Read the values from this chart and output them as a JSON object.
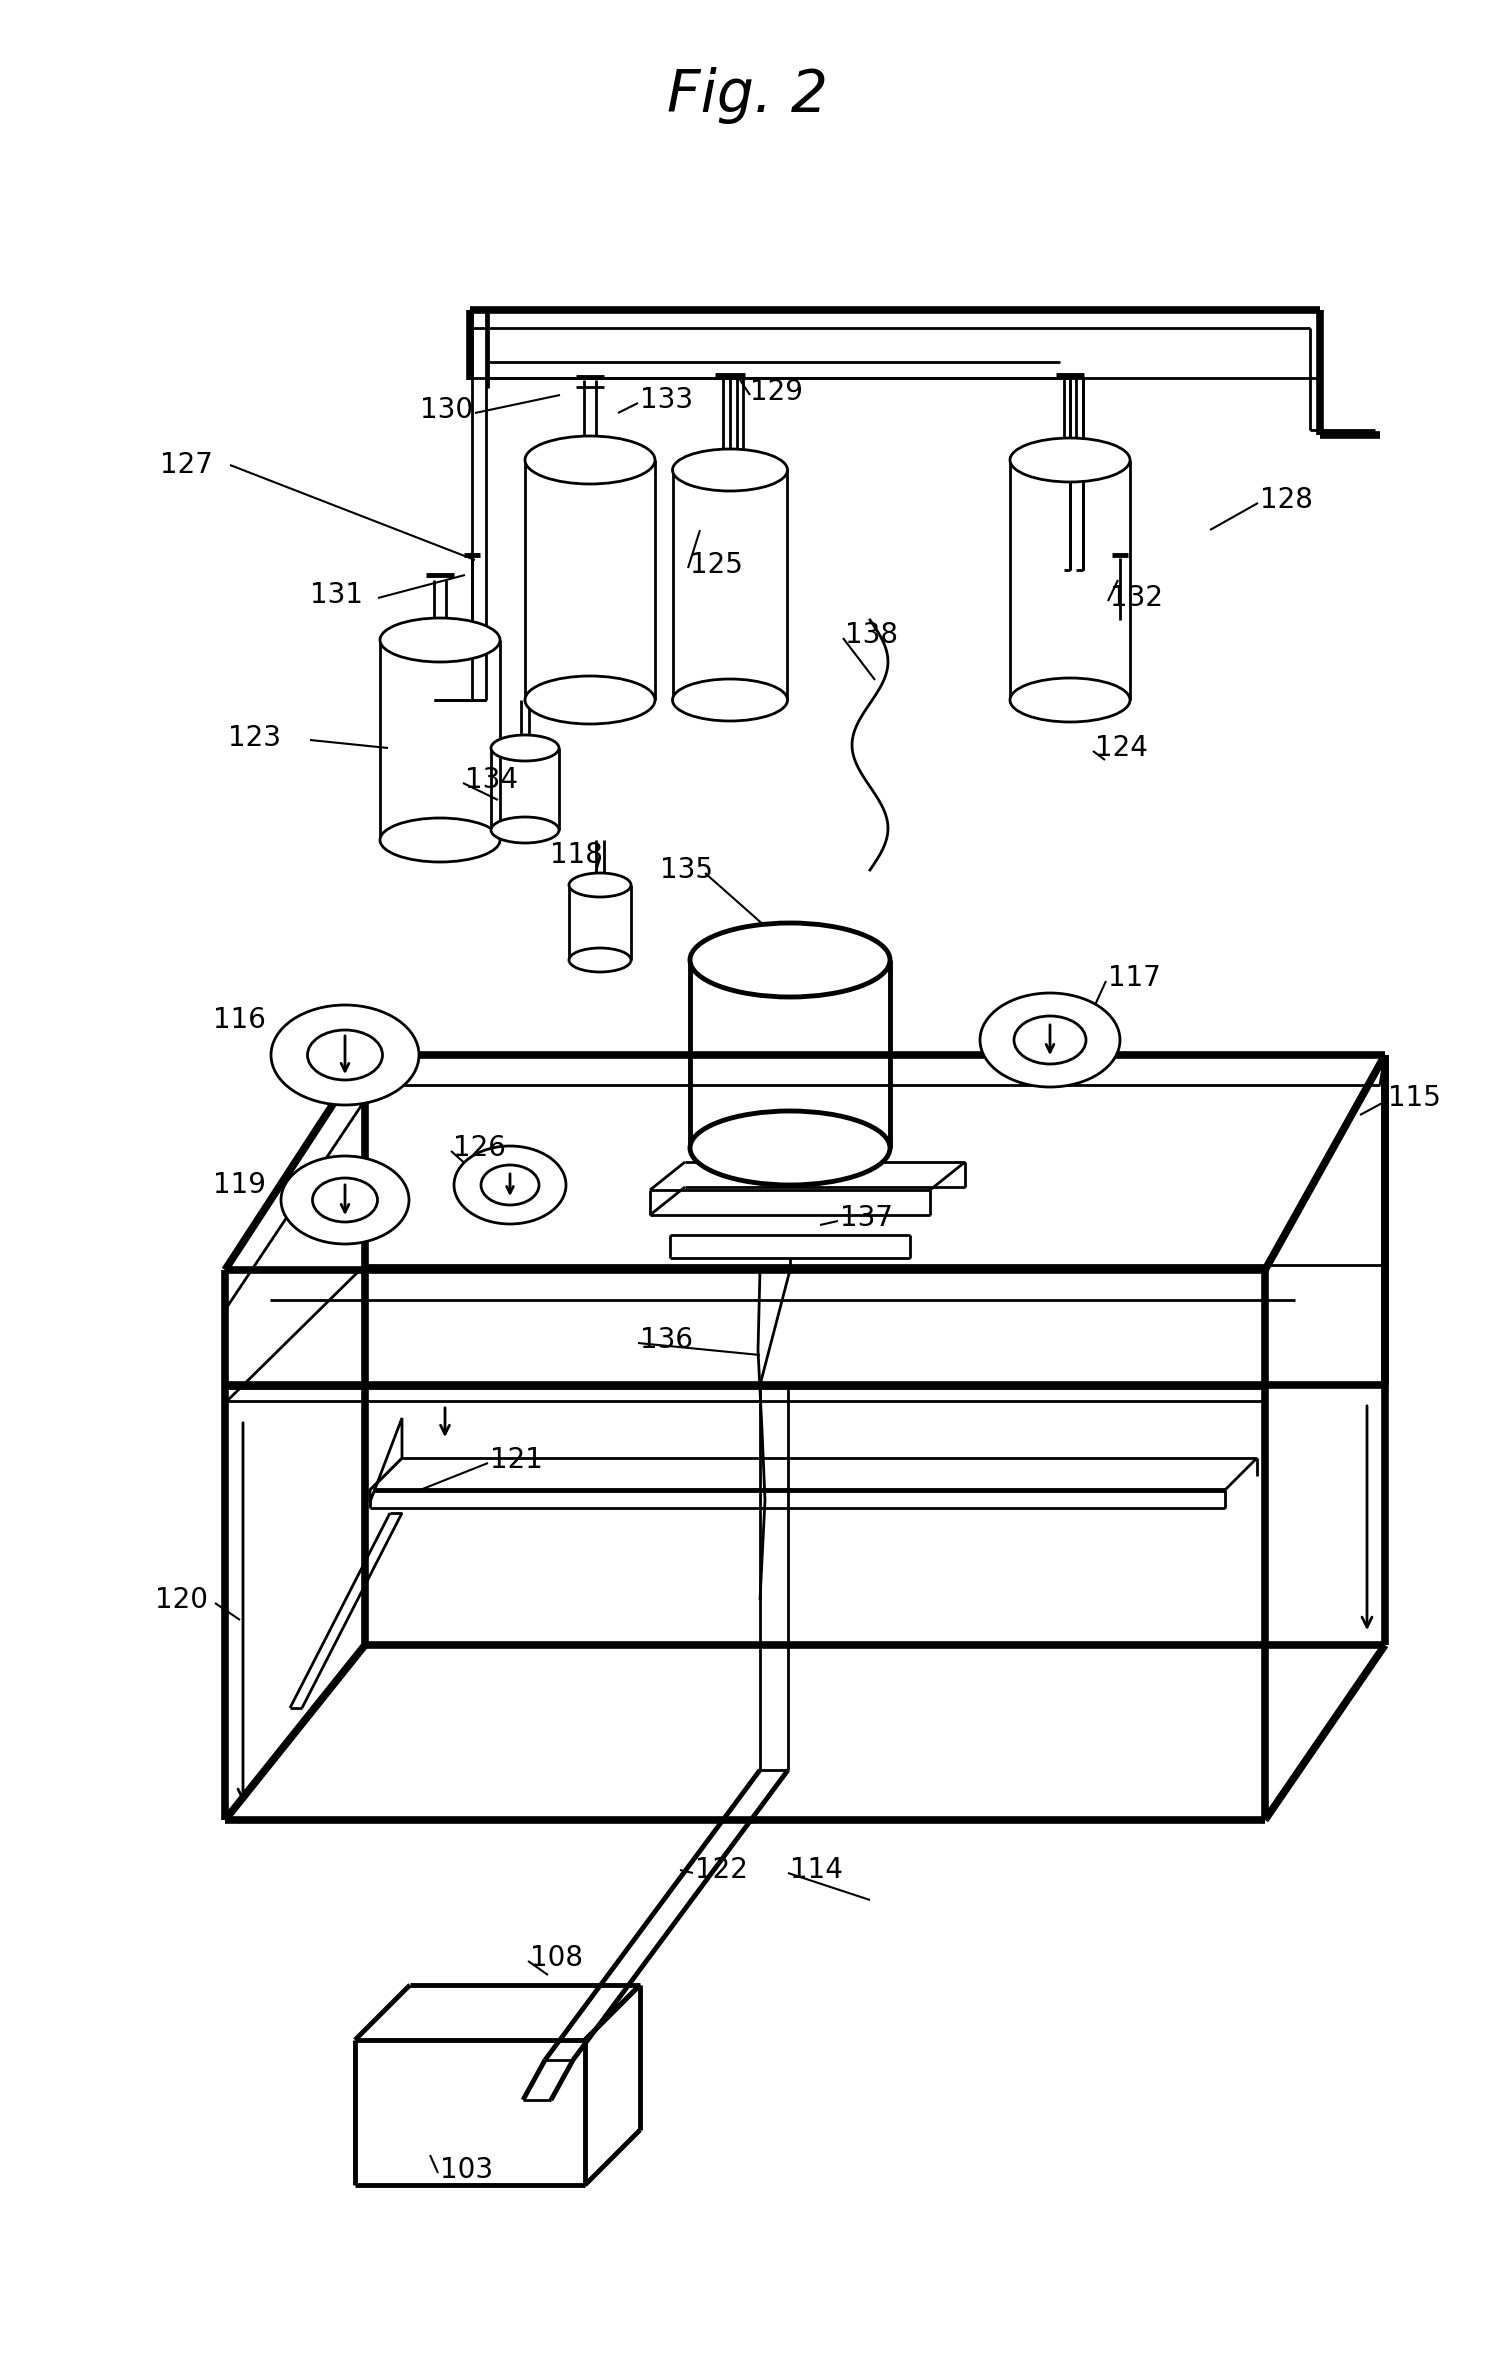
{
  "title": "Fig. 2",
  "bg_color": "#ffffff",
  "line_color": "#000000",
  "fig_width": 14.96,
  "fig_height": 23.6,
  "dpi": 100,
  "lw_thin": 2.0,
  "lw_med": 3.5,
  "lw_thick": 5.5,
  "label_fs": 20
}
